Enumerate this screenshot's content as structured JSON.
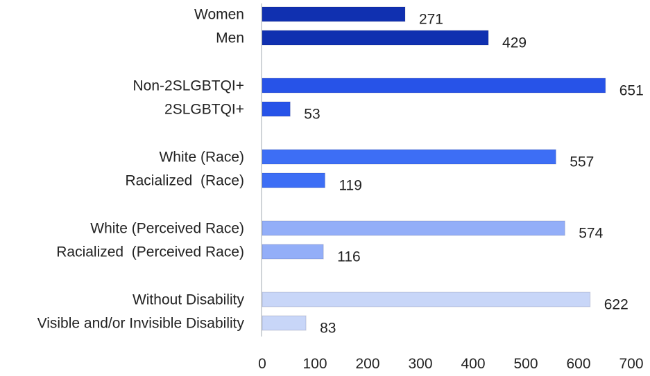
{
  "chart_data": {
    "type": "bar",
    "orientation": "horizontal",
    "title": "",
    "xlabel": "",
    "ylabel": "",
    "xlim": [
      0,
      700
    ],
    "xticks": [
      0,
      100,
      200,
      300,
      400,
      500,
      600,
      700
    ],
    "grid": false,
    "groups": [
      {
        "color": "#1030b0",
        "bars": [
          {
            "label": "Women",
            "value": 271
          },
          {
            "label": "Men",
            "value": 429
          }
        ]
      },
      {
        "color": "#2753e8",
        "bars": [
          {
            "label": "Non-2SLGBTQI+",
            "value": 651
          },
          {
            "label": "2SLGBTQI+",
            "value": 53
          }
        ]
      },
      {
        "color": "#3d6ef5",
        "bars": [
          {
            "label": "White (Race)",
            "value": 557
          },
          {
            "label": "Racialized  (Race)",
            "value": 119
          }
        ]
      },
      {
        "color": "#93aef8",
        "bars": [
          {
            "label": "White (Perceived Race)",
            "value": 574
          },
          {
            "label": "Racialized  (Perceived Race)",
            "value": 116
          }
        ]
      },
      {
        "color": "#c8d6f8",
        "bars": [
          {
            "label": "Without Disability",
            "value": 622
          },
          {
            "label": "Visible and/or Invisible Disability",
            "value": 83
          }
        ]
      }
    ]
  }
}
